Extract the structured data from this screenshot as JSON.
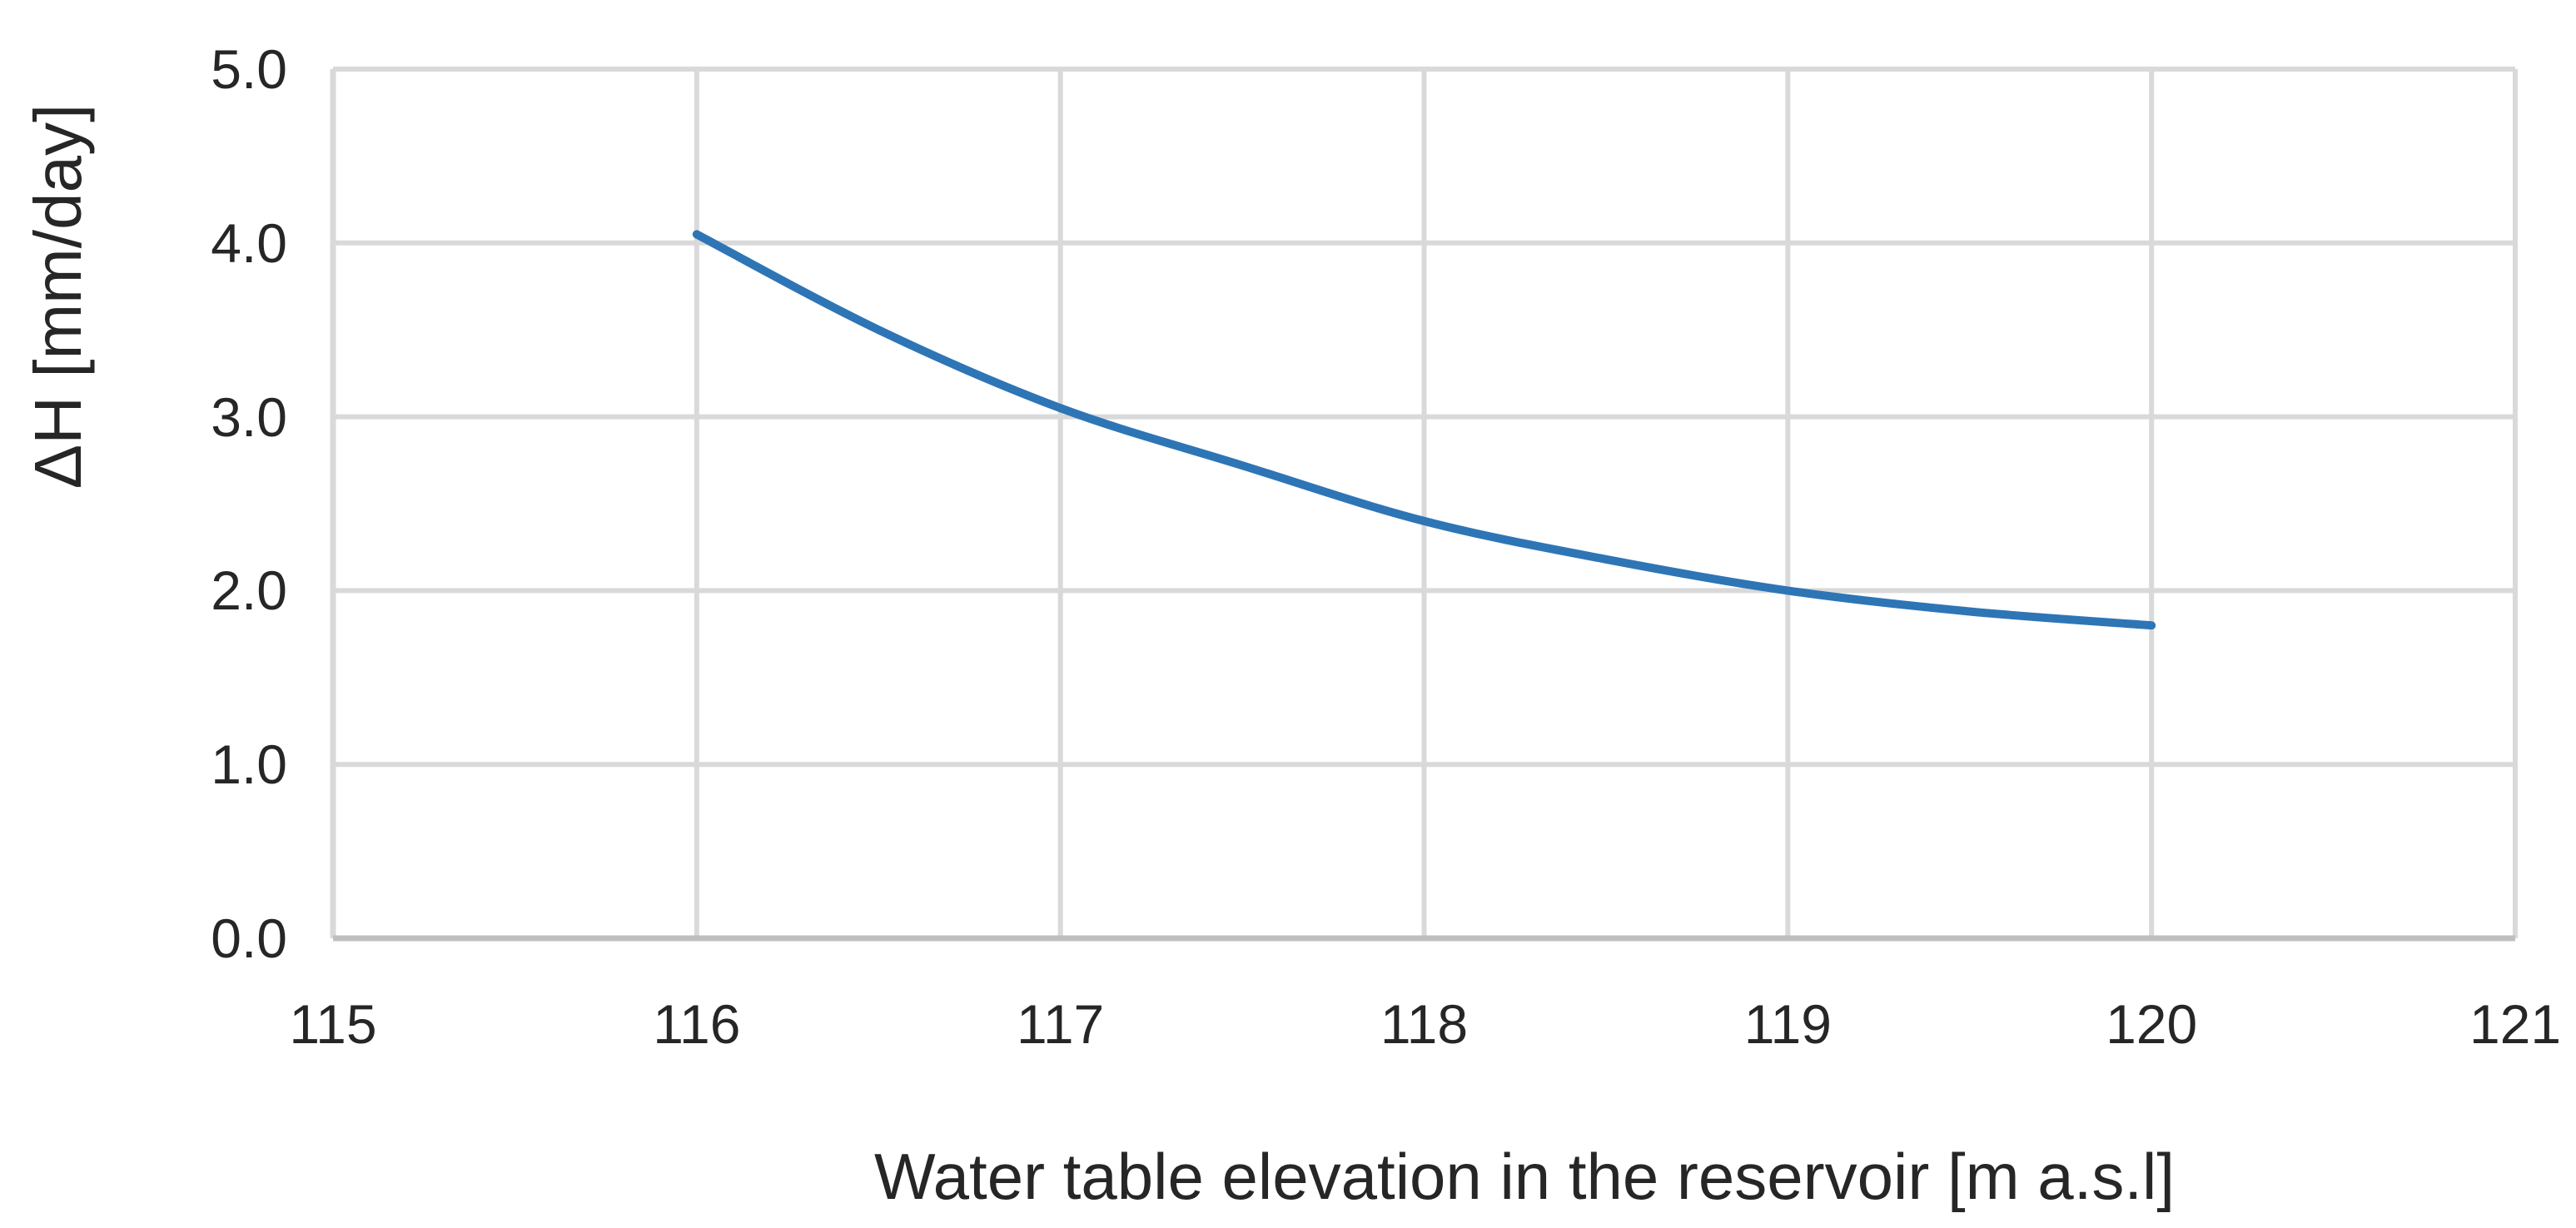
{
  "chart_data": {
    "type": "line",
    "title": "",
    "xlabel": "Water table elevation in the reservoir [m a.s.l]",
    "ylabel": "ΔH [mm/day]",
    "xlim": [
      115,
      121
    ],
    "ylim": [
      0,
      5
    ],
    "x_tick_labels": [
      "115",
      "116",
      "117",
      "118",
      "119",
      "120",
      "121"
    ],
    "y_tick_labels": [
      "0.0",
      "1.0",
      "2.0",
      "3.0",
      "4.0",
      "5.0"
    ],
    "grid": true,
    "legend": false,
    "series": [
      {
        "name": "ΔH",
        "color": "#2E75B6",
        "x": [
          116,
          116.5,
          117,
          117.5,
          118,
          118.5,
          119,
          119.5,
          120
        ],
        "y": [
          4.05,
          3.5,
          3.05,
          2.72,
          2.4,
          2.18,
          2.0,
          1.88,
          1.8
        ]
      }
    ],
    "colors": {
      "gridline": "#D9D9D9",
      "axis_line": "#BFBFBF",
      "text": "#262626",
      "background": "#FFFFFF"
    }
  }
}
